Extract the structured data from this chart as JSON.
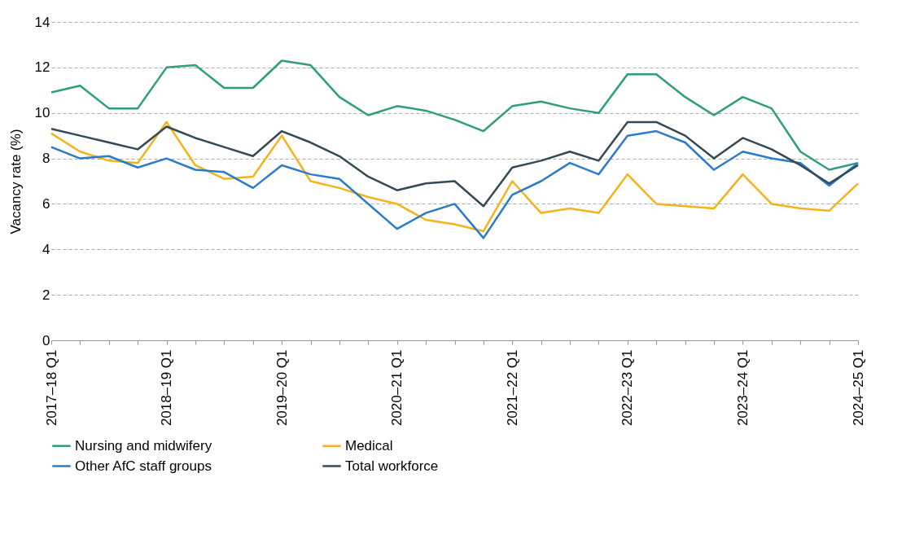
{
  "chart_data": {
    "type": "line",
    "ylabel": "Vacancy rate (%)",
    "categories": [
      "2017–18 Q1",
      null,
      null,
      null,
      "2018–19 Q1",
      null,
      null,
      null,
      "2019–20 Q1",
      null,
      null,
      null,
      "2020–21 Q1",
      null,
      null,
      null,
      "2021–22 Q1",
      null,
      null,
      null,
      "2022–23 Q1",
      null,
      null,
      null,
      "2023–24 Q1",
      null,
      null,
      null,
      "2024–25 Q1"
    ],
    "series": [
      {
        "name": "Nursing and midwifery",
        "color": "#2e9e78",
        "values": [
          10.9,
          11.2,
          10.2,
          10.2,
          12.0,
          12.1,
          11.1,
          11.1,
          12.3,
          12.1,
          10.7,
          9.9,
          10.3,
          10.1,
          9.7,
          9.2,
          10.3,
          10.5,
          10.2,
          10.0,
          11.7,
          11.7,
          10.7,
          9.9,
          10.7,
          10.2,
          8.3,
          7.5,
          7.8
        ]
      },
      {
        "name": "Medical",
        "color": "#f2b31b",
        "values": [
          9.1,
          8.3,
          7.9,
          7.8,
          9.6,
          7.7,
          7.1,
          7.2,
          9.0,
          7.0,
          6.7,
          6.3,
          6.0,
          5.3,
          5.1,
          4.8,
          7.0,
          5.6,
          5.8,
          5.6,
          7.3,
          6.0,
          5.9,
          5.8,
          7.3,
          6.0,
          5.8,
          5.7,
          6.9
        ]
      },
      {
        "name": "Other AfC staff groups",
        "color": "#2b7bca",
        "values": [
          8.5,
          8.0,
          8.1,
          7.6,
          8.0,
          7.5,
          7.4,
          6.7,
          7.7,
          7.3,
          7.1,
          6.0,
          4.9,
          5.6,
          6.0,
          4.5,
          6.4,
          7.0,
          7.8,
          7.3,
          9.0,
          9.2,
          8.7,
          7.5,
          8.3,
          8.0,
          7.8,
          6.8,
          7.8
        ]
      },
      {
        "name": "Total workforce",
        "color": "#334a55",
        "values": [
          9.3,
          9.0,
          8.7,
          8.4,
          9.4,
          8.9,
          8.5,
          8.1,
          9.2,
          8.7,
          8.1,
          7.2,
          6.6,
          6.9,
          7.0,
          5.9,
          7.6,
          7.9,
          8.3,
          7.9,
          9.6,
          9.6,
          9.0,
          8.0,
          8.9,
          8.4,
          7.7,
          6.9,
          7.7
        ]
      }
    ],
    "ylim": [
      0,
      14
    ],
    "yticks": [
      0,
      2,
      4,
      6,
      8,
      10,
      12,
      14
    ],
    "grid": "y",
    "legend": "bottom",
    "marker": "none",
    "line_style": "solid"
  }
}
